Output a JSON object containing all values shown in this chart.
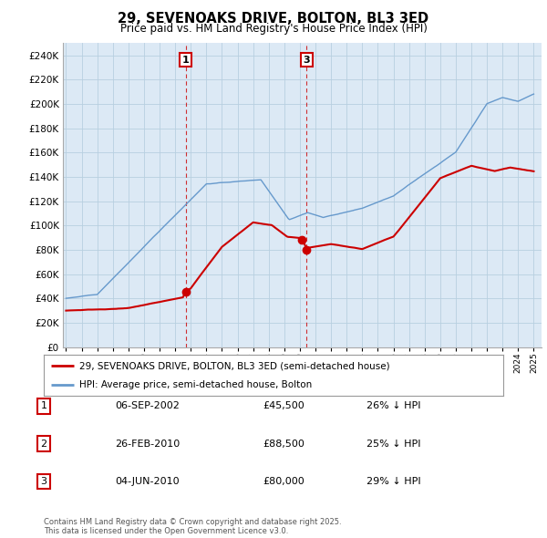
{
  "title": "29, SEVENOAKS DRIVE, BOLTON, BL3 3ED",
  "subtitle": "Price paid vs. HM Land Registry's House Price Index (HPI)",
  "ylim": [
    0,
    250000
  ],
  "yticks": [
    0,
    20000,
    40000,
    60000,
    80000,
    100000,
    120000,
    140000,
    160000,
    180000,
    200000,
    220000,
    240000
  ],
  "background_color": "#ffffff",
  "plot_bg_color": "#dce9f5",
  "grid_color": "#b8cfe0",
  "hpi_color": "#6699cc",
  "price_color": "#cc0000",
  "transactions": [
    {
      "label": "1",
      "date": "06-SEP-2002",
      "price": 45500,
      "year": 2002.67,
      "pct": "26% ↓ HPI",
      "show_vline": true,
      "show_top_label": true
    },
    {
      "label": "2",
      "date": "26-FEB-2010",
      "price": 88500,
      "year": 2010.12,
      "pct": "25% ↓ HPI",
      "show_vline": false,
      "show_top_label": false
    },
    {
      "label": "3",
      "date": "04-JUN-2010",
      "price": 80000,
      "year": 2010.42,
      "pct": "29% ↓ HPI",
      "show_vline": true,
      "show_top_label": true
    }
  ],
  "legend_entries": [
    "29, SEVENOAKS DRIVE, BOLTON, BL3 3ED (semi-detached house)",
    "HPI: Average price, semi-detached house, Bolton"
  ],
  "footer": "Contains HM Land Registry data © Crown copyright and database right 2025.\nThis data is licensed under the Open Government Licence v3.0."
}
